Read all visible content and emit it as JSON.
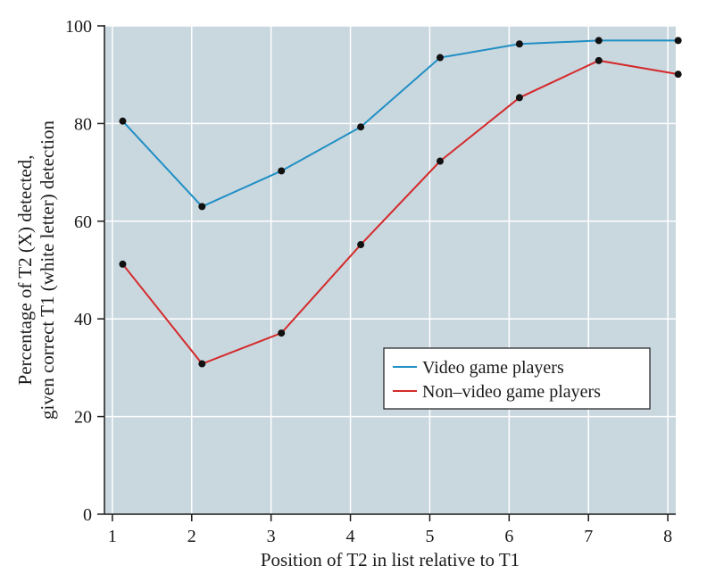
{
  "chart_data": {
    "type": "line",
    "title": "",
    "xlabel": "Position of T2 in list relative to T1",
    "ylabel_lines": [
      "Percentage of T2 (X) detected,",
      "given correct T1 (white letter) detection"
    ],
    "x": [
      1,
      2,
      3,
      4,
      5,
      6,
      7,
      8
    ],
    "xlim": [
      0.9,
      8.1
    ],
    "ylim": [
      0,
      100
    ],
    "x_ticks": [
      "1",
      "2",
      "3",
      "4",
      "5",
      "6",
      "7",
      "8"
    ],
    "y_ticks": [
      "0",
      "20",
      "40",
      "60",
      "80",
      "100"
    ],
    "grid": true,
    "legend_position": "lower-right",
    "series": [
      {
        "name": "Video game players",
        "color": "#1f8fc4",
        "values": [
          80.5,
          63,
          70.3,
          79.3,
          93.5,
          96.3,
          97,
          97
        ]
      },
      {
        "name": "Non–video game players",
        "color": "#d42a2a",
        "values": [
          51.2,
          30.8,
          37.1,
          55.2,
          72.3,
          85.3,
          92.9,
          90.1
        ]
      }
    ],
    "plot_background": "#c9d7df",
    "grid_color": "#ffffff",
    "marker_color": "#111111"
  }
}
